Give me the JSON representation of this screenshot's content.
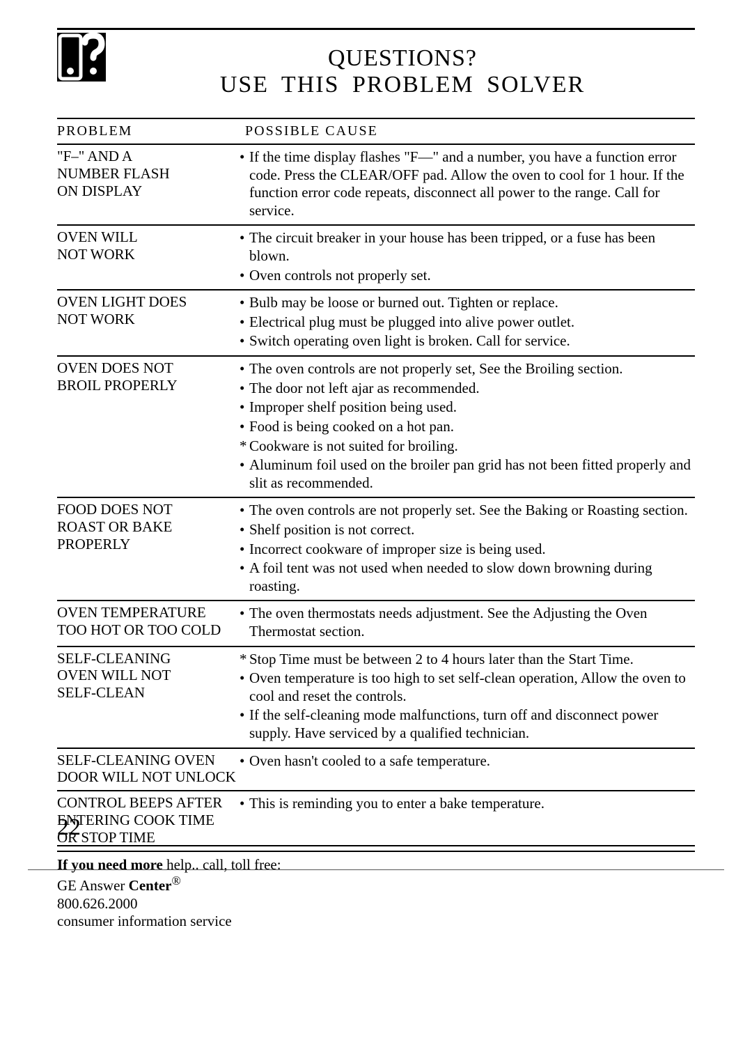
{
  "title": {
    "line1": "QUESTIONS?",
    "line2": "USE  THIS  PROBLEM  SOLVER"
  },
  "headers": {
    "problem": "PROBLEM",
    "cause": "POSSIBLE   CAUSE"
  },
  "rows": [
    {
      "problem": [
        "\"F–\" AND A",
        "NUMBER  FLASH",
        "ON DISPLAY"
      ],
      "causes": [
        {
          "marker": "•",
          "text": "If the time display flashes \"F—\" and a number, you have a function error code. Press the CLEAR/OFF pad. Allow the oven to cool for 1 hour. If the function error code repeats, disconnect all power to the range. Call for service."
        }
      ]
    },
    {
      "problem": [
        "OVEN WILL",
        "NOT WORK"
      ],
      "causes": [
        {
          "marker": "•",
          "text": "The circuit breaker in your house has been tripped, or a fuse has been blown."
        },
        {
          "marker": "•",
          "text": "Oven controls not properly set."
        }
      ]
    },
    {
      "problem": [
        "OVEN LIGHT DOES",
        "NOT WORK"
      ],
      "causes": [
        {
          "marker": "•",
          "text": "Bulb may be loose or burned out. Tighten or replace."
        },
        {
          "marker": "•",
          "text": "Electrical plug must be plugged into alive power outlet."
        },
        {
          "marker": "•",
          "text": "Switch operating oven light is broken. Call for service."
        }
      ]
    },
    {
      "problem": [
        "OVEN DOES NOT",
        "BROIL PROPERLY"
      ],
      "causes": [
        {
          "marker": "•",
          "text": "The oven controls are not properly set, See the Broiling section."
        },
        {
          "marker": "•",
          "text": "The door not left ajar as recommended."
        },
        {
          "marker": "•",
          "text": "Improper shelf position being used."
        },
        {
          "marker": "•",
          "text": "Food is being cooked on a hot pan."
        },
        {
          "marker": "*",
          "text": "Cookware is not suited for broiling."
        },
        {
          "marker": "•",
          "text": "Aluminum foil used on the broiler pan grid has not been fitted properly and slit as recommended."
        }
      ]
    },
    {
      "problem": [
        "FOOD DOES NOT",
        "ROAST OR BAKE",
        "PROPERLY"
      ],
      "causes": [
        {
          "marker": "•",
          "text": "The oven controls are not properly set. See the Baking or Roasting section."
        },
        {
          "marker": "•",
          "text": "Shelf position is not correct."
        },
        {
          "marker": "•",
          "text": "Incorrect cookware of improper size is being used."
        },
        {
          "marker": "•",
          "text": "A foil tent was not used when needed to slow down browning during roasting."
        }
      ]
    },
    {
      "problem": [
        "OVEN TEMPERATURE",
        "TOO HOT OR TOO COLD"
      ],
      "causes": [
        {
          "marker": "•",
          "text": "The oven thermostats needs adjustment. See the Adjusting the Oven Thermostat section."
        }
      ]
    },
    {
      "problem": [
        "SELF-CLEANING",
        "OVEN WILL NOT",
        "SELF-CLEAN"
      ],
      "causes": [
        {
          "marker": "*",
          "text": "Stop Time must be between 2 to 4 hours later than the Start Time."
        },
        {
          "marker": "•",
          "text": "Oven temperature is too high to set self-clean operation, Allow the oven to cool and reset the controls."
        },
        {
          "marker": "•",
          "text": "If the self-cleaning mode malfunctions, turn off and disconnect power supply. Have serviced by a qualified technician."
        }
      ]
    },
    {
      "problem": [
        "SELF-CLEANING OVEN",
        "DOOR WILL NOT UNLOCK"
      ],
      "causes": [
        {
          "marker": "•",
          "text": "Oven hasn't cooled to a safe temperature."
        }
      ]
    },
    {
      "problem": [
        "CONTROL BEEPS AFTER",
        "ENTERING COOK TIME",
        "OR STOP TIME"
      ],
      "causes": [
        {
          "marker": "•",
          "text": "This is reminding you to enter a bake temperature."
        }
      ]
    }
  ],
  "footer": {
    "line1_a": "If you need more",
    "line1_b": " help.. call, toll free:",
    "line2_a": "GE Answer ",
    "line2_b": "Center",
    "reg": "®",
    "line3": "800.626.2000",
    "line4": "consumer  information  service"
  },
  "page_number": "22",
  "colors": {
    "text": "#000000",
    "background": "#ffffff",
    "rule": "#000000"
  }
}
